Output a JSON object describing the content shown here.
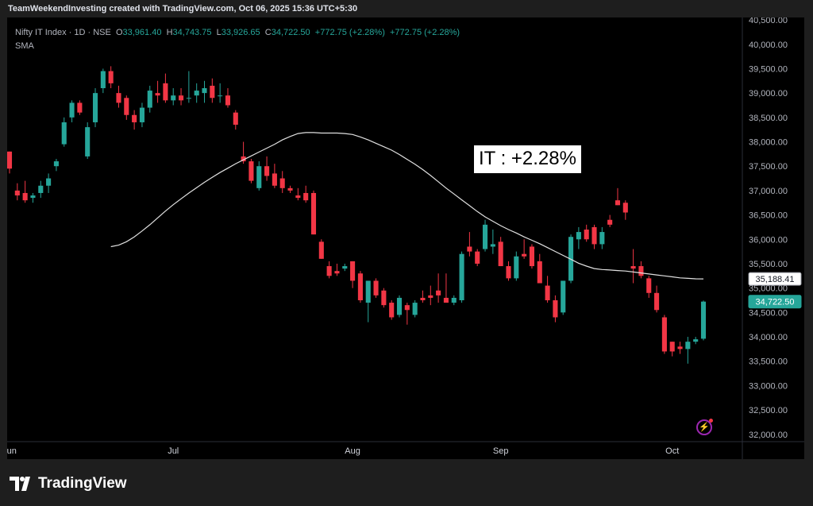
{
  "header": {
    "credit": "TeamWeekendInvesting created with TradingView.com, Oct 06, 2025 15:36 UTC+5:30"
  },
  "legend": {
    "symbol": "Nifty IT Index · 1D · NSE",
    "o_label": "O",
    "o": "33,961.40",
    "h_label": "H",
    "h": "34,743.75",
    "l_label": "L",
    "l": "33,926.65",
    "c_label": "C",
    "c": "34,722.50",
    "chg": "+772.75 (+2.28%)",
    "chg2": "+772.75 (+2.28%)",
    "indicator": "SMA"
  },
  "annotation": "IT : +2.28%",
  "brand": {
    "name": "TradingView"
  },
  "colors": {
    "up": "#26a69a",
    "down": "#f23645",
    "sma": "#e0e0e0",
    "bg": "#000000"
  },
  "icons": {
    "bolt": "lightning-icon",
    "logo": "tradingview-logo-icon"
  },
  "chart_data": {
    "type": "candlestick",
    "title": "Nifty IT Index · 1D · NSE",
    "y_ticks": [
      "32,000.00",
      "32,500.00",
      "33,000.00",
      "33,500.00",
      "34,000.00",
      "34,500.00",
      "35,000.00",
      "35,500.00",
      "36,000.00",
      "36,500.00",
      "37,000.00",
      "37,500.00",
      "38,000.00",
      "38,500.00",
      "39,000.00",
      "39,500.00",
      "40,000.00",
      "40,500.00"
    ],
    "y_tick_values": [
      32000,
      32500,
      33000,
      33500,
      34000,
      34500,
      35000,
      35500,
      36000,
      36500,
      37000,
      37500,
      38000,
      38500,
      39000,
      39500,
      40000,
      40500
    ],
    "ylim": [
      31850,
      40550
    ],
    "x_labels": [
      {
        "label": "Jun",
        "index": 0
      },
      {
        "label": "Jul",
        "index": 21
      },
      {
        "label": "Aug",
        "index": 44
      },
      {
        "label": "Sep",
        "index": 63
      },
      {
        "label": "Oct",
        "index": 85
      }
    ],
    "price_labels": {
      "sma_last": "35,188.41",
      "close_last": "34,722.50"
    },
    "series": [
      {
        "name": "SMA",
        "values": [
          35850,
          35880,
          35950,
          36050,
          36170,
          36300,
          36440,
          36580,
          36710,
          36830,
          36950,
          37060,
          37170,
          37270,
          37370,
          37460,
          37550,
          37630,
          37710,
          37790,
          37870,
          37950,
          38040,
          38110,
          38170,
          38190,
          38190,
          38180,
          38180,
          38180,
          38170,
          38150,
          38100,
          38040,
          37970,
          37900,
          37830,
          37740,
          37640,
          37540,
          37430,
          37310,
          37180,
          37050,
          36930,
          36810,
          36690,
          36570,
          36460,
          36370,
          36280,
          36200,
          36130,
          36050,
          35980,
          35910,
          35830,
          35750,
          35670,
          35590,
          35510,
          35450,
          35400,
          35380,
          35370,
          35360,
          35350,
          35330,
          35310,
          35290,
          35270,
          35250,
          35230,
          35210,
          35200,
          35190,
          35188.41
        ]
      }
    ],
    "candles": [
      {
        "o": 37800,
        "h": 37800,
        "l": 37350,
        "c": 37450
      },
      {
        "o": 37000,
        "h": 37150,
        "l": 36800,
        "c": 36900
      },
      {
        "o": 36950,
        "h": 37200,
        "l": 36750,
        "c": 36800
      },
      {
        "o": 36850,
        "h": 36950,
        "l": 36750,
        "c": 36900
      },
      {
        "o": 36950,
        "h": 37200,
        "l": 36850,
        "c": 37100
      },
      {
        "o": 37100,
        "h": 37350,
        "l": 36950,
        "c": 37250
      },
      {
        "o": 37500,
        "h": 37650,
        "l": 37400,
        "c": 37600
      },
      {
        "o": 37950,
        "h": 38500,
        "l": 37900,
        "c": 38400
      },
      {
        "o": 38500,
        "h": 38850,
        "l": 38400,
        "c": 38800
      },
      {
        "o": 38800,
        "h": 38850,
        "l": 38550,
        "c": 38600
      },
      {
        "o": 37700,
        "h": 38400,
        "l": 37650,
        "c": 38300
      },
      {
        "o": 38400,
        "h": 39100,
        "l": 38300,
        "c": 39000
      },
      {
        "o": 39100,
        "h": 39500,
        "l": 39000,
        "c": 39450
      },
      {
        "o": 39450,
        "h": 39550,
        "l": 39100,
        "c": 39200
      },
      {
        "o": 39000,
        "h": 39150,
        "l": 38700,
        "c": 38800
      },
      {
        "o": 38900,
        "h": 38950,
        "l": 38450,
        "c": 38550
      },
      {
        "o": 38550,
        "h": 38650,
        "l": 38250,
        "c": 38400
      },
      {
        "o": 38400,
        "h": 38800,
        "l": 38300,
        "c": 38700
      },
      {
        "o": 38700,
        "h": 39150,
        "l": 38600,
        "c": 39050
      },
      {
        "o": 39000,
        "h": 39250,
        "l": 38800,
        "c": 38950
      },
      {
        "o": 39200,
        "h": 39400,
        "l": 38800,
        "c": 38850
      },
      {
        "o": 38850,
        "h": 39100,
        "l": 38750,
        "c": 38950
      },
      {
        "o": 38950,
        "h": 39100,
        "l": 38750,
        "c": 38850
      },
      {
        "o": 38900,
        "h": 39450,
        "l": 38800,
        "c": 38900
      },
      {
        "o": 38950,
        "h": 39200,
        "l": 38800,
        "c": 39050
      },
      {
        "o": 39000,
        "h": 39250,
        "l": 38800,
        "c": 39100
      },
      {
        "o": 39150,
        "h": 39300,
        "l": 38800,
        "c": 38900
      },
      {
        "o": 38950,
        "h": 39200,
        "l": 38800,
        "c": 38950
      },
      {
        "o": 38950,
        "h": 39100,
        "l": 38700,
        "c": 38750
      },
      {
        "o": 38600,
        "h": 38650,
        "l": 38250,
        "c": 38350
      },
      {
        "o": 37700,
        "h": 38000,
        "l": 37550,
        "c": 37600
      },
      {
        "o": 37600,
        "h": 37650,
        "l": 37150,
        "c": 37200
      },
      {
        "o": 37050,
        "h": 37600,
        "l": 37000,
        "c": 37500
      },
      {
        "o": 37500,
        "h": 37700,
        "l": 37200,
        "c": 37300
      },
      {
        "o": 37350,
        "h": 37550,
        "l": 37050,
        "c": 37100
      },
      {
        "o": 37250,
        "h": 37400,
        "l": 36950,
        "c": 37050
      },
      {
        "o": 37050,
        "h": 37100,
        "l": 36950,
        "c": 37000
      },
      {
        "o": 36900,
        "h": 37050,
        "l": 36800,
        "c": 36850
      },
      {
        "o": 36950,
        "h": 37100,
        "l": 36750,
        "c": 36800
      },
      {
        "o": 36950,
        "h": 37000,
        "l": 36100,
        "c": 36100
      },
      {
        "o": 35950,
        "h": 36000,
        "l": 35600,
        "c": 35600
      },
      {
        "o": 35450,
        "h": 35550,
        "l": 35200,
        "c": 35250
      },
      {
        "o": 35350,
        "h": 35500,
        "l": 35250,
        "c": 35300
      },
      {
        "o": 35400,
        "h": 35500,
        "l": 35350,
        "c": 35450
      },
      {
        "o": 35550,
        "h": 35550,
        "l": 35000,
        "c": 35150
      },
      {
        "o": 35300,
        "h": 35350,
        "l": 34700,
        "c": 34750
      },
      {
        "o": 34700,
        "h": 35150,
        "l": 34300,
        "c": 35150
      },
      {
        "o": 35150,
        "h": 35200,
        "l": 34800,
        "c": 34850
      },
      {
        "o": 34950,
        "h": 35000,
        "l": 34600,
        "c": 34650
      },
      {
        "o": 34700,
        "h": 34750,
        "l": 34350,
        "c": 34400
      },
      {
        "o": 34450,
        "h": 34850,
        "l": 34400,
        "c": 34800
      },
      {
        "o": 34650,
        "h": 34700,
        "l": 34250,
        "c": 34550
      },
      {
        "o": 34450,
        "h": 34750,
        "l": 34400,
        "c": 34700
      },
      {
        "o": 34800,
        "h": 34950,
        "l": 34700,
        "c": 34750
      },
      {
        "o": 34850,
        "h": 35050,
        "l": 34650,
        "c": 34800
      },
      {
        "o": 34950,
        "h": 35300,
        "l": 34700,
        "c": 34850
      },
      {
        "o": 34800,
        "h": 35300,
        "l": 34700,
        "c": 34700
      },
      {
        "o": 34700,
        "h": 34850,
        "l": 34650,
        "c": 34800
      },
      {
        "o": 34750,
        "h": 35750,
        "l": 34700,
        "c": 35700
      },
      {
        "o": 35850,
        "h": 36150,
        "l": 35650,
        "c": 35750
      },
      {
        "o": 35750,
        "h": 35800,
        "l": 35450,
        "c": 35500
      },
      {
        "o": 35800,
        "h": 36400,
        "l": 35750,
        "c": 36300
      },
      {
        "o": 35850,
        "h": 36200,
        "l": 35700,
        "c": 35900
      },
      {
        "o": 35950,
        "h": 36050,
        "l": 35450,
        "c": 35450
      },
      {
        "o": 35450,
        "h": 35550,
        "l": 35150,
        "c": 35200
      },
      {
        "o": 35200,
        "h": 35750,
        "l": 35150,
        "c": 35650
      },
      {
        "o": 35700,
        "h": 36000,
        "l": 35600,
        "c": 35650
      },
      {
        "o": 35850,
        "h": 35900,
        "l": 35400,
        "c": 35450
      },
      {
        "o": 35550,
        "h": 35700,
        "l": 35100,
        "c": 35100
      },
      {
        "o": 35050,
        "h": 35250,
        "l": 34700,
        "c": 34750
      },
      {
        "o": 34750,
        "h": 34850,
        "l": 34300,
        "c": 34400
      },
      {
        "o": 34500,
        "h": 35150,
        "l": 34450,
        "c": 35150
      },
      {
        "o": 35150,
        "h": 36100,
        "l": 35100,
        "c": 36050
      },
      {
        "o": 36000,
        "h": 36250,
        "l": 35800,
        "c": 36150
      },
      {
        "o": 36200,
        "h": 36300,
        "l": 35950,
        "c": 36000
      },
      {
        "o": 36250,
        "h": 36300,
        "l": 35800,
        "c": 35900
      },
      {
        "o": 35900,
        "h": 36250,
        "l": 35800,
        "c": 36150
      },
      {
        "o": 36400,
        "h": 36500,
        "l": 36250,
        "c": 36300
      },
      {
        "o": 36800,
        "h": 37050,
        "l": 36700,
        "c": 36700
      },
      {
        "o": 36750,
        "h": 36800,
        "l": 36400,
        "c": 36550
      },
      {
        "o": 35450,
        "h": 35800,
        "l": 35100,
        "c": 35400
      },
      {
        "o": 35450,
        "h": 35550,
        "l": 35200,
        "c": 35250
      },
      {
        "o": 35200,
        "h": 35250,
        "l": 34800,
        "c": 34900
      },
      {
        "o": 34900,
        "h": 35050,
        "l": 34500,
        "c": 34550
      },
      {
        "o": 34400,
        "h": 34450,
        "l": 33650,
        "c": 33700
      },
      {
        "o": 33900,
        "h": 33900,
        "l": 33600,
        "c": 33700
      },
      {
        "o": 33800,
        "h": 33900,
        "l": 33650,
        "c": 33750
      },
      {
        "o": 33750,
        "h": 34000,
        "l": 33450,
        "c": 33900
      },
      {
        "o": 33900,
        "h": 34000,
        "l": 33850,
        "c": 33950
      },
      {
        "o": 33961.4,
        "h": 34743.75,
        "l": 33926.65,
        "c": 34722.5
      }
    ]
  }
}
